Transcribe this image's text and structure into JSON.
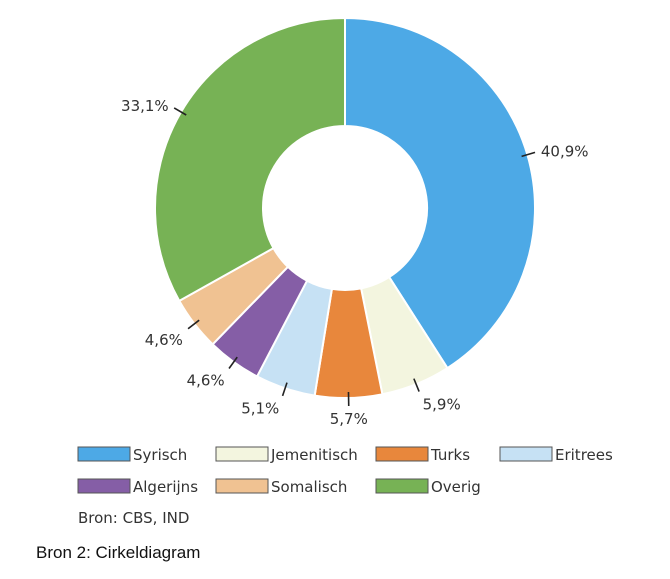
{
  "chart_data": {
    "type": "pie",
    "variant": "donut",
    "title": "",
    "slices": [
      {
        "name": "Syrisch",
        "value": 40.9,
        "label": "40,9%",
        "color": "#4da9e6"
      },
      {
        "name": "Jemenitisch",
        "value": 5.9,
        "label": "5,9%",
        "color": "#f3f5df"
      },
      {
        "name": "Turks",
        "value": 5.7,
        "label": "5,7%",
        "color": "#e8873c"
      },
      {
        "name": "Eritrees",
        "value": 5.1,
        "label": "5,1%",
        "color": "#c6e1f4"
      },
      {
        "name": "Algerijns",
        "value": 4.6,
        "label": "4,6%",
        "color": "#855ea6"
      },
      {
        "name": "Somalisch",
        "value": 4.6,
        "label": "4,6%",
        "color": "#f0c292"
      },
      {
        "name": "Overig",
        "value": 33.1,
        "label": "33,1%",
        "color": "#77b255"
      }
    ],
    "legend_placement": "bottom",
    "source_note": "Bron: CBS, IND"
  },
  "caption": "Bron 2: Cirkeldiagram"
}
